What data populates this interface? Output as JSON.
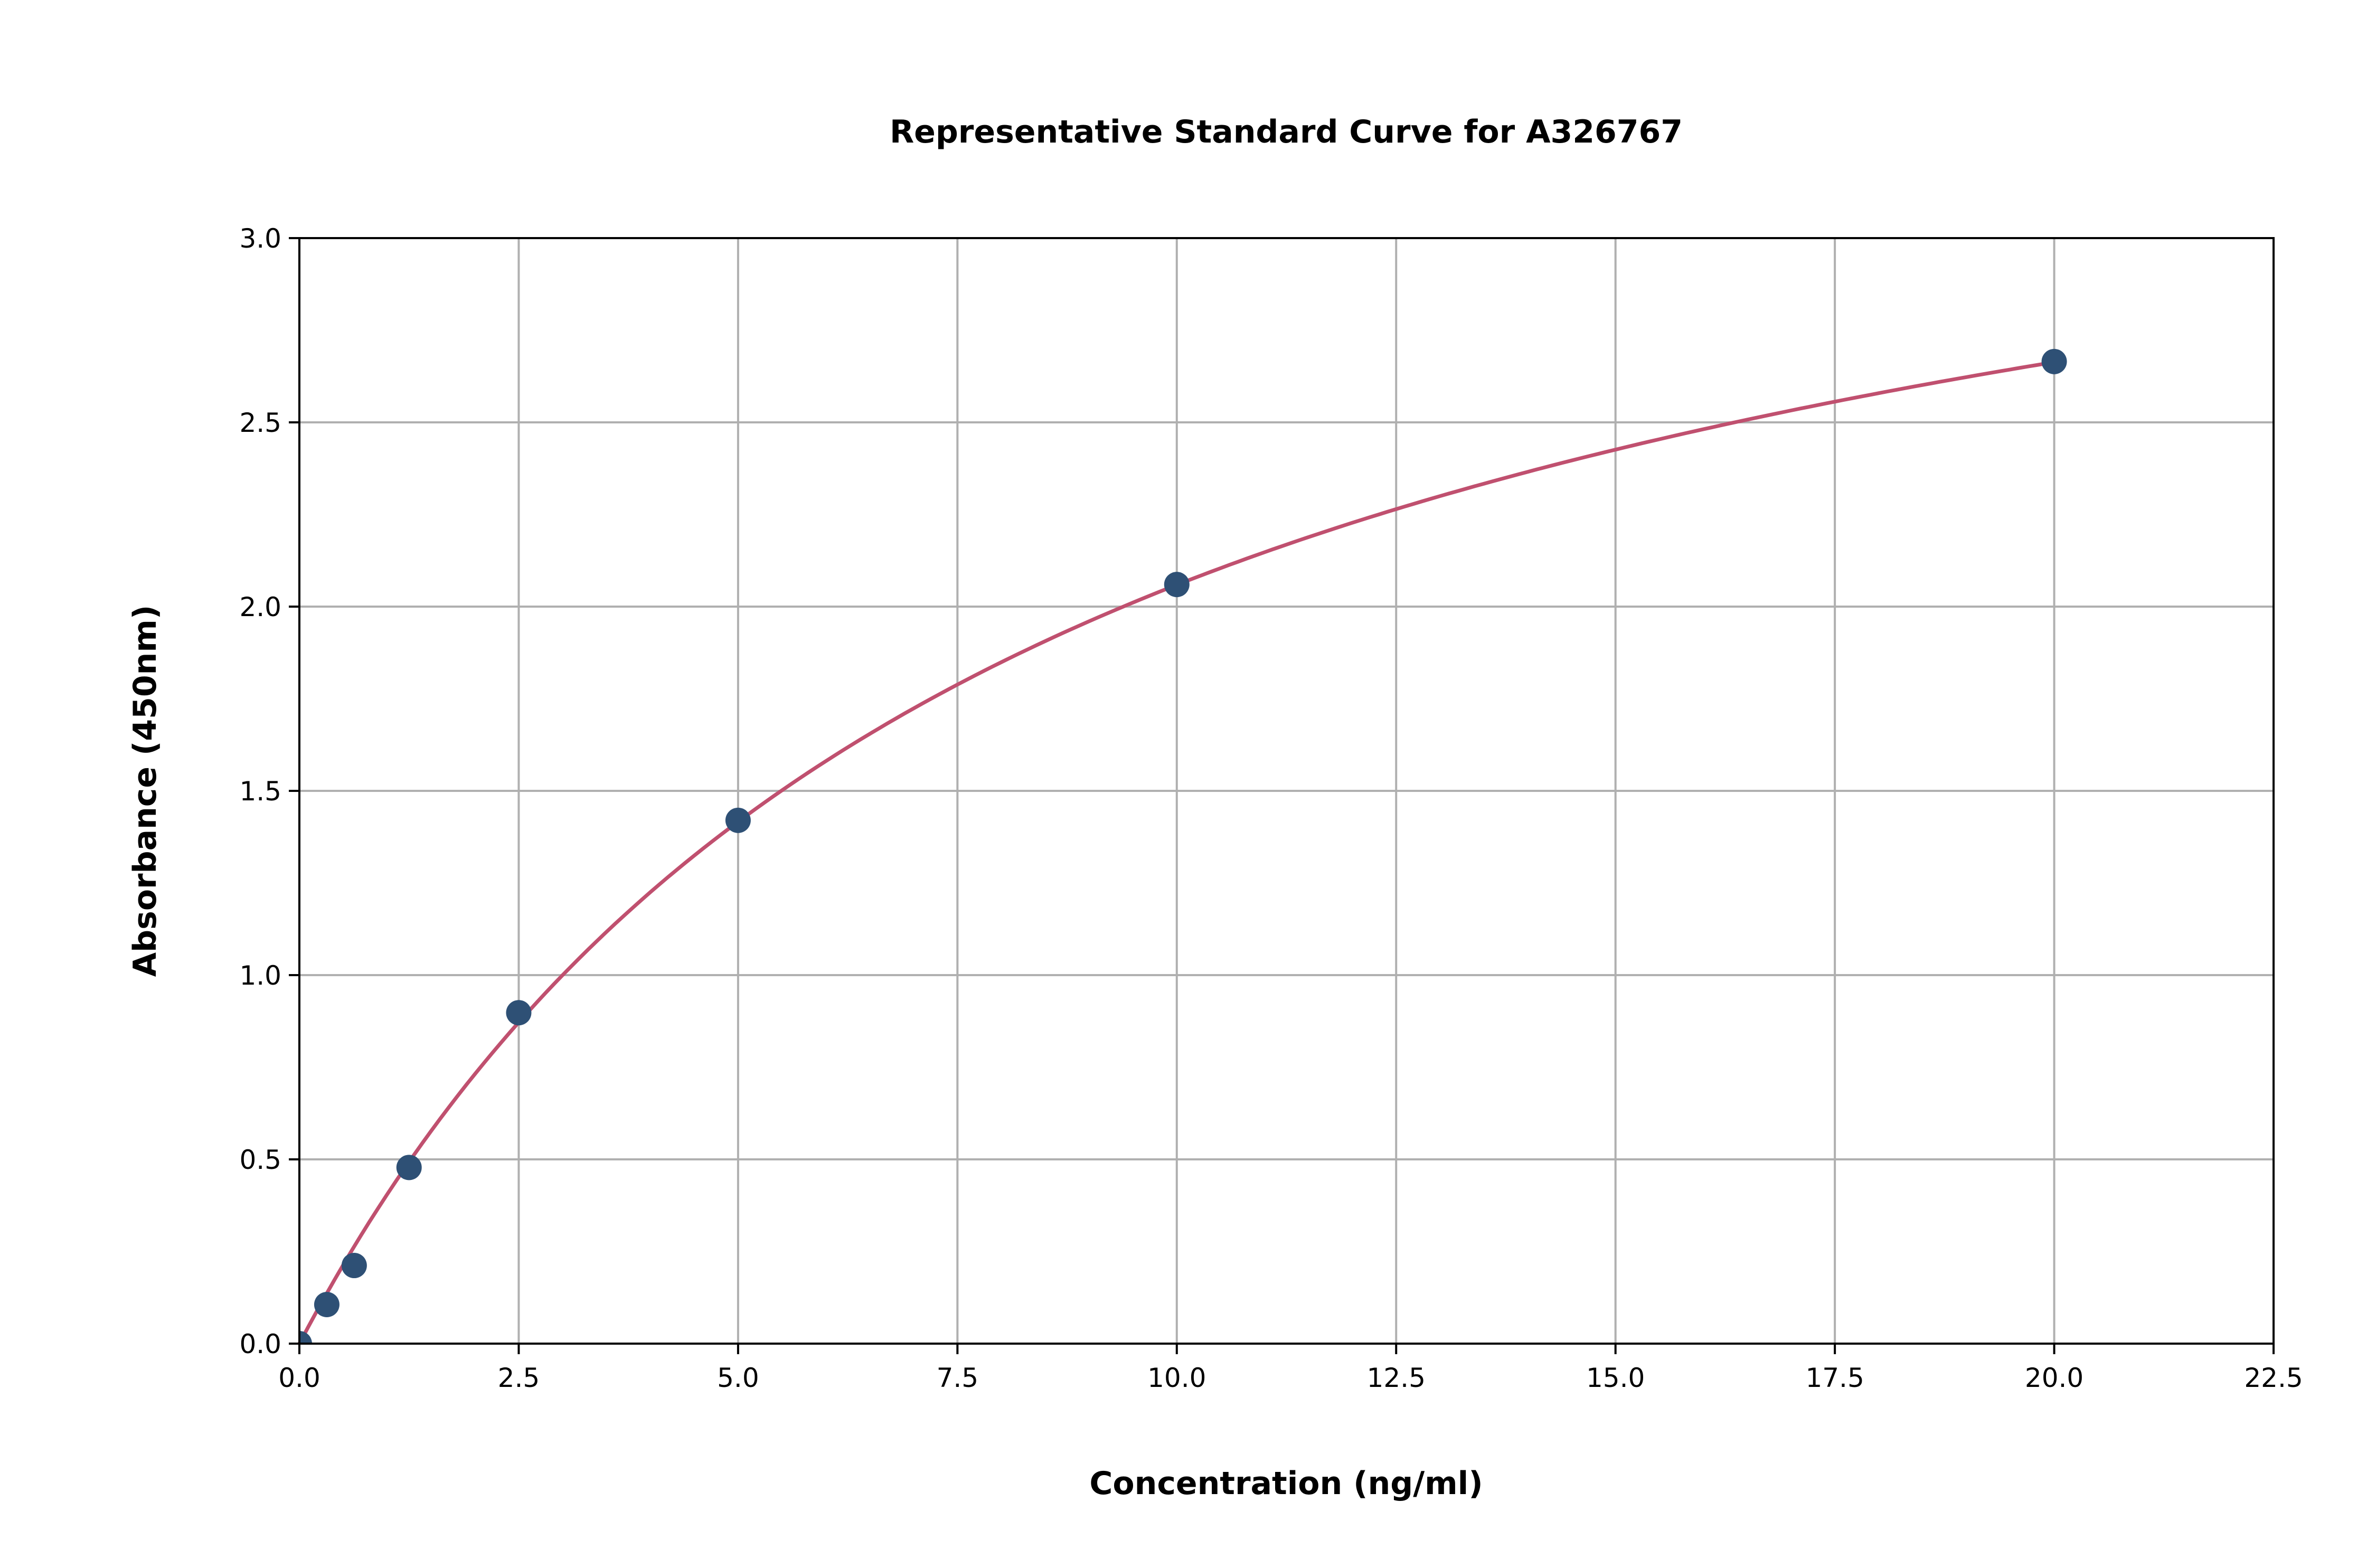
{
  "chart_data": {
    "type": "scatter",
    "title": "Representative Standard Curve for A326767",
    "xlabel": "Concentration (ng/ml)",
    "ylabel": "Absorbance (450nm)",
    "xlim": [
      0,
      22.5
    ],
    "ylim": [
      0,
      3.0
    ],
    "xticks": [
      "0.0",
      "2.5",
      "5.0",
      "7.5",
      "10.0",
      "12.5",
      "15.0",
      "17.5",
      "20.0",
      "22.5"
    ],
    "yticks": [
      "0.0",
      "0.5",
      "1.0",
      "1.5",
      "2.0",
      "2.5",
      "3.0"
    ],
    "grid": true,
    "points": [
      {
        "x": 0,
        "y": 0.0
      },
      {
        "x": 0.3125,
        "y": 0.106
      },
      {
        "x": 0.625,
        "y": 0.212
      },
      {
        "x": 1.25,
        "y": 0.478
      },
      {
        "x": 2.5,
        "y": 0.898
      },
      {
        "x": 5,
        "y": 1.42
      },
      {
        "x": 10,
        "y": 2.06
      },
      {
        "x": 20,
        "y": 2.665
      }
    ],
    "colors": {
      "points": "#2e5075",
      "curve": "#c0506f",
      "grid": "#b0b0b0"
    }
  }
}
